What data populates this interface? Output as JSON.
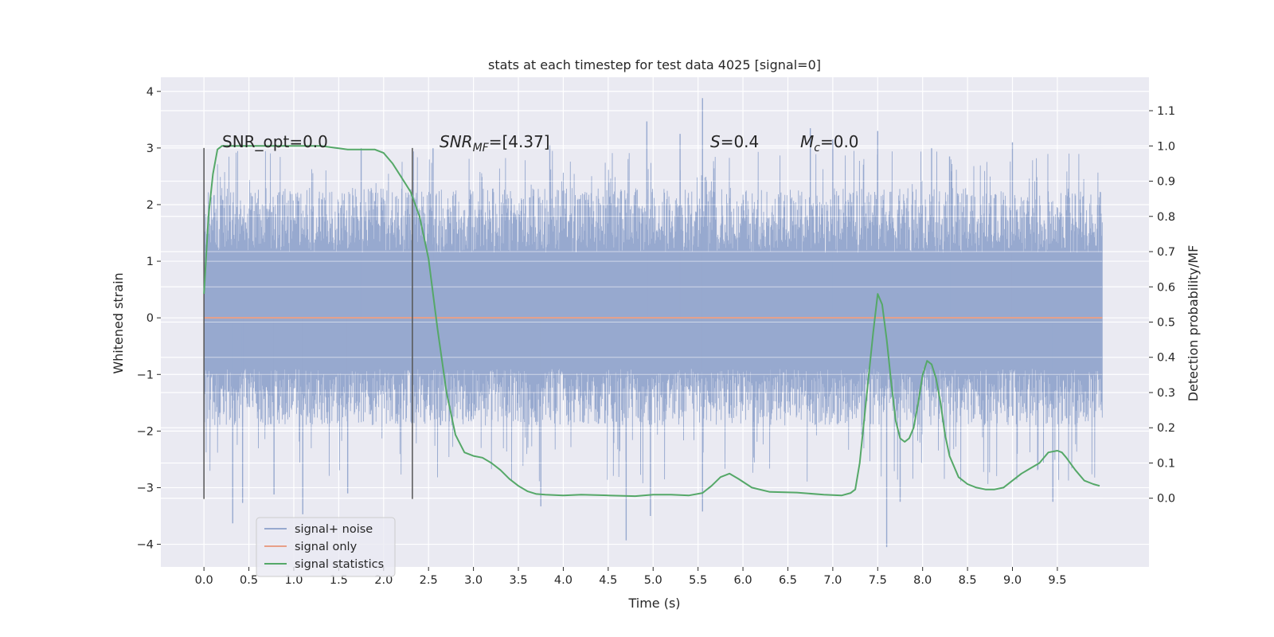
{
  "chart_data": {
    "type": "line",
    "title": "stats at each timestep for test data 4025 [signal=0]",
    "xlabel": "Time (s)",
    "ylabel": "Whitened strain",
    "y2label": "Detection probability/MF",
    "xlim": [
      -0.48,
      10.52
    ],
    "ylim": [
      -4.4,
      4.25
    ],
    "y2lim": [
      -0.195,
      1.195
    ],
    "x_ticks": [
      "0.0",
      "0.5",
      "1.0",
      "1.5",
      "2.0",
      "2.5",
      "3.0",
      "3.5",
      "4.0",
      "4.5",
      "5.0",
      "5.5",
      "6.0",
      "6.5",
      "7.0",
      "7.5",
      "8.0",
      "8.5",
      "9.0",
      "9.5"
    ],
    "y_ticks": [
      "−4",
      "−3",
      "−2",
      "−1",
      "0",
      "1",
      "2",
      "3",
      "4"
    ],
    "y2_ticks": [
      "0.0",
      "0.1",
      "0.2",
      "0.3",
      "0.4",
      "0.5",
      "0.6",
      "0.7",
      "0.8",
      "0.9",
      "1.0",
      "1.1"
    ],
    "grid": true,
    "legend_position": "lower-left",
    "annotations": {
      "snr_opt": "SNR_opt=0.0",
      "snr_mf": "SNR",
      "snr_mf_sub": "MF",
      "snr_mf_val": "=[4.37]",
      "s_sym": "S",
      "s_val": "=0.4",
      "mc_sym": "M",
      "mc_sub": "c",
      "mc_val": "=0.0"
    },
    "window_markers": {
      "x": [
        0.0,
        2.32
      ],
      "ymin": -3.2,
      "ymax": 3.0
    },
    "series": [
      {
        "name": "signal+ noise",
        "color": "#97a9cf",
        "axis": "left",
        "x_range": [
          0.0,
          10.0
        ],
        "typical_range": [
          -1.9,
          2.3
        ],
        "peaks": [
          {
            "x": 0.32,
            "y": -3.63
          },
          {
            "x": 0.43,
            "y": -3.27
          },
          {
            "x": 0.78,
            "y": -3.12
          },
          {
            "x": 1.1,
            "y": -3.47
          },
          {
            "x": 1.6,
            "y": -3.1
          },
          {
            "x": 3.75,
            "y": -3.33
          },
          {
            "x": 4.7,
            "y": -3.93
          },
          {
            "x": 4.97,
            "y": -3.5
          },
          {
            "x": 5.55,
            "y": -3.42
          },
          {
            "x": 7.6,
            "y": -4.05
          },
          {
            "x": 7.75,
            "y": -3.25
          },
          {
            "x": 9.45,
            "y": -3.25
          },
          {
            "x": 5.55,
            "y": 3.88
          },
          {
            "x": 4.93,
            "y": 3.47
          },
          {
            "x": 5.3,
            "y": 3.25
          },
          {
            "x": 6.75,
            "y": 3.35
          },
          {
            "x": 7.5,
            "y": 3.3
          },
          {
            "x": 7.0,
            "y": 3.15
          },
          {
            "x": 2.55,
            "y": 3.0
          },
          {
            "x": 8.1,
            "y": 3.0
          },
          {
            "x": 3.85,
            "y": 3.05
          },
          {
            "x": 9.0,
            "y": 3.1
          },
          {
            "x": 1.75,
            "y": 3.0
          },
          {
            "x": 8.3,
            "y": 2.85
          }
        ]
      },
      {
        "name": "signal only",
        "color": "#e8a088",
        "axis": "left",
        "x": [
          0.0,
          10.0
        ],
        "y": [
          0.0,
          0.0
        ]
      },
      {
        "name": "signal statistics",
        "color": "#55a868",
        "axis": "right",
        "x": [
          0.0,
          0.05,
          0.1,
          0.15,
          0.2,
          0.3,
          0.5,
          0.8,
          1.0,
          1.3,
          1.6,
          1.9,
          2.0,
          2.1,
          2.2,
          2.3,
          2.4,
          2.5,
          2.6,
          2.7,
          2.8,
          2.9,
          3.0,
          3.1,
          3.2,
          3.3,
          3.4,
          3.5,
          3.6,
          3.7,
          3.8,
          4.0,
          4.2,
          4.5,
          4.8,
          5.0,
          5.2,
          5.4,
          5.55,
          5.65,
          5.75,
          5.85,
          5.95,
          6.1,
          6.3,
          6.6,
          6.9,
          7.1,
          7.2,
          7.25,
          7.3,
          7.38,
          7.45,
          7.5,
          7.55,
          7.6,
          7.65,
          7.7,
          7.75,
          7.8,
          7.85,
          7.9,
          7.95,
          8.0,
          8.05,
          8.1,
          8.15,
          8.2,
          8.25,
          8.3,
          8.4,
          8.5,
          8.6,
          8.7,
          8.8,
          8.9,
          9.0,
          9.1,
          9.2,
          9.3,
          9.4,
          9.5,
          9.55,
          9.6,
          9.7,
          9.8,
          9.9,
          9.97
        ],
        "y": [
          0.58,
          0.8,
          0.92,
          0.99,
          1.0,
          1.0,
          1.0,
          1.0,
          1.0,
          1.0,
          0.99,
          0.99,
          0.98,
          0.95,
          0.91,
          0.87,
          0.8,
          0.68,
          0.48,
          0.3,
          0.18,
          0.13,
          0.12,
          0.115,
          0.1,
          0.08,
          0.055,
          0.035,
          0.02,
          0.012,
          0.01,
          0.008,
          0.01,
          0.008,
          0.006,
          0.01,
          0.01,
          0.008,
          0.015,
          0.035,
          0.06,
          0.07,
          0.055,
          0.03,
          0.018,
          0.016,
          0.01,
          0.008,
          0.015,
          0.025,
          0.1,
          0.3,
          0.47,
          0.58,
          0.55,
          0.45,
          0.33,
          0.22,
          0.17,
          0.16,
          0.17,
          0.2,
          0.27,
          0.35,
          0.39,
          0.38,
          0.34,
          0.27,
          0.18,
          0.12,
          0.06,
          0.04,
          0.03,
          0.025,
          0.025,
          0.03,
          0.05,
          0.07,
          0.085,
          0.1,
          0.13,
          0.135,
          0.13,
          0.115,
          0.08,
          0.05,
          0.04,
          0.035
        ]
      }
    ]
  }
}
